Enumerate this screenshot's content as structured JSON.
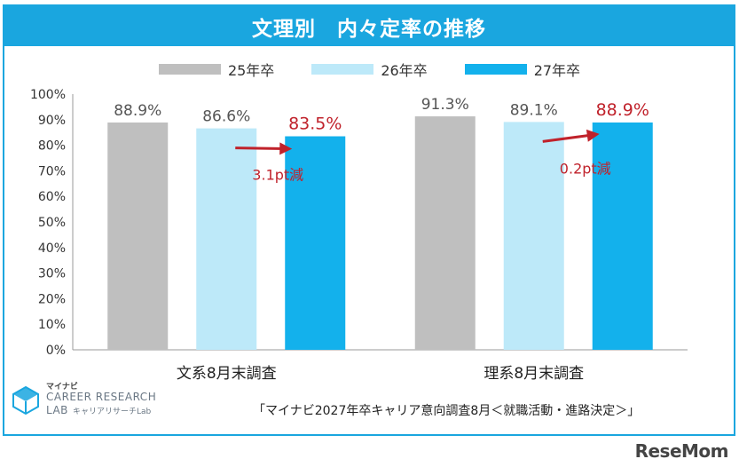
{
  "title": "文理別　内々定率の推移",
  "source_note": "「マイナビ2027年卒キャリア意向調査8月＜就職活動・進路決定＞」",
  "logo": {
    "small": "マイナビ",
    "main_line1": "CAREER RESEARCH",
    "main_line2": "LAB",
    "sub": "キャリアリサーチLab"
  },
  "watermark": "ReseMom",
  "colors": {
    "series_25": "#bfbfbf",
    "series_26": "#bde9f9",
    "series_27": "#13b1ec",
    "highlight": "#c0222b",
    "frame": "#1aa6df"
  },
  "chart_data": {
    "type": "bar",
    "title": "文理別　内々定率の推移",
    "categories": [
      "文系8月末調査",
      "理系8月末調査"
    ],
    "series": [
      {
        "name": "25年卒",
        "values": [
          88.9,
          91.3
        ],
        "labels": [
          "88.9%",
          "91.3%"
        ]
      },
      {
        "name": "26年卒",
        "values": [
          86.6,
          89.1
        ],
        "labels": [
          "86.6%",
          "89.1%"
        ]
      },
      {
        "name": "27年卒",
        "values": [
          83.5,
          88.9
        ],
        "labels": [
          "83.5%",
          "88.9%"
        ]
      }
    ],
    "annotations": [
      "3.1pt減",
      "0.2pt減"
    ],
    "ylim": [
      0,
      100
    ],
    "yticks": [
      "0%",
      "10%",
      "20%",
      "30%",
      "40%",
      "50%",
      "60%",
      "70%",
      "80%",
      "90%",
      "100%"
    ],
    "legend_position": "top",
    "grid": false
  }
}
